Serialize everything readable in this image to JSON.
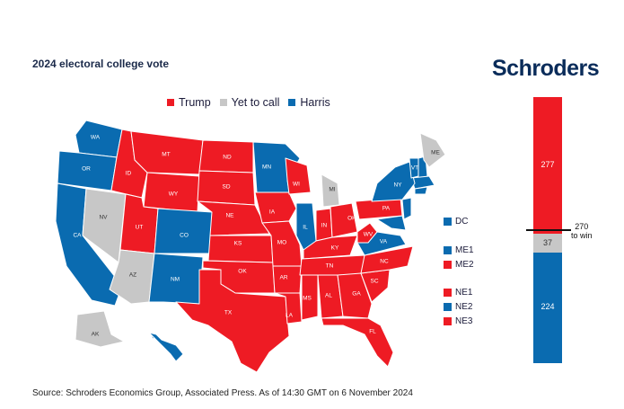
{
  "title": "2024 electoral college vote",
  "brand": "Schroders",
  "legend": [
    {
      "label": "Trump",
      "color": "#ee1b24"
    },
    {
      "label": "Yet to call",
      "color": "#c7c7c7"
    },
    {
      "label": "Harris",
      "color": "#0a6bb0"
    }
  ],
  "colors": {
    "trump": "#ee1b24",
    "uncalled": "#c7c7c7",
    "harris": "#0a6bb0"
  },
  "states": [
    {
      "abbr": "WA",
      "winner": "harris"
    },
    {
      "abbr": "OR",
      "winner": "harris"
    },
    {
      "abbr": "CA",
      "winner": "harris"
    },
    {
      "abbr": "NV",
      "winner": "uncalled"
    },
    {
      "abbr": "ID",
      "winner": "trump"
    },
    {
      "abbr": "MT",
      "winner": "trump"
    },
    {
      "abbr": "WY",
      "winner": "trump"
    },
    {
      "abbr": "UT",
      "winner": "trump"
    },
    {
      "abbr": "AZ",
      "winner": "uncalled"
    },
    {
      "abbr": "CO",
      "winner": "harris"
    },
    {
      "abbr": "NM",
      "winner": "harris"
    },
    {
      "abbr": "ND",
      "winner": "trump"
    },
    {
      "abbr": "SD",
      "winner": "trump"
    },
    {
      "abbr": "NE",
      "winner": "trump"
    },
    {
      "abbr": "KS",
      "winner": "trump"
    },
    {
      "abbr": "OK",
      "winner": "trump"
    },
    {
      "abbr": "TX",
      "winner": "trump"
    },
    {
      "abbr": "MN",
      "winner": "harris"
    },
    {
      "abbr": "IA",
      "winner": "trump"
    },
    {
      "abbr": "MO",
      "winner": "trump"
    },
    {
      "abbr": "AR",
      "winner": "trump"
    },
    {
      "abbr": "LA",
      "winner": "trump"
    },
    {
      "abbr": "WI",
      "winner": "trump"
    },
    {
      "abbr": "IL",
      "winner": "harris"
    },
    {
      "abbr": "MI",
      "winner": "uncalled"
    },
    {
      "abbr": "IN",
      "winner": "trump"
    },
    {
      "abbr": "OH",
      "winner": "trump"
    },
    {
      "abbr": "KY",
      "winner": "trump"
    },
    {
      "abbr": "TN",
      "winner": "trump"
    },
    {
      "abbr": "MS",
      "winner": "trump"
    },
    {
      "abbr": "AL",
      "winner": "trump"
    },
    {
      "abbr": "GA",
      "winner": "trump"
    },
    {
      "abbr": "FL",
      "winner": "trump"
    },
    {
      "abbr": "SC",
      "winner": "trump"
    },
    {
      "abbr": "NC",
      "winner": "trump"
    },
    {
      "abbr": "VA",
      "winner": "harris"
    },
    {
      "abbr": "WV",
      "winner": "trump"
    },
    {
      "abbr": "PA",
      "winner": "trump"
    },
    {
      "abbr": "NY",
      "winner": "harris"
    },
    {
      "abbr": "VT",
      "winner": "harris"
    },
    {
      "abbr": "ME",
      "winner": "uncalled"
    },
    {
      "abbr": "AK",
      "winner": "uncalled"
    },
    {
      "abbr": "HI",
      "winner": "harris"
    }
  ],
  "districts": [
    {
      "label": "DC",
      "winner": "harris"
    },
    {
      "label": "ME1",
      "winner": "harris"
    },
    {
      "label": "ME2",
      "winner": "trump"
    },
    {
      "label": "NE1",
      "winner": "trump"
    },
    {
      "label": "NE2",
      "winner": "harris"
    },
    {
      "label": "NE3",
      "winner": "trump"
    }
  ],
  "tally": {
    "trump": {
      "value": "277",
      "votes": 277
    },
    "uncalled": {
      "value": "37",
      "votes": 37
    },
    "harris": {
      "value": "224",
      "votes": 224
    },
    "threshold_line1": "270",
    "threshold_line2": "to win",
    "threshold": 270
  },
  "source": "Source: Schroders Economics Group, Associated Press. As of 14:30 GMT on 6 November 2024"
}
